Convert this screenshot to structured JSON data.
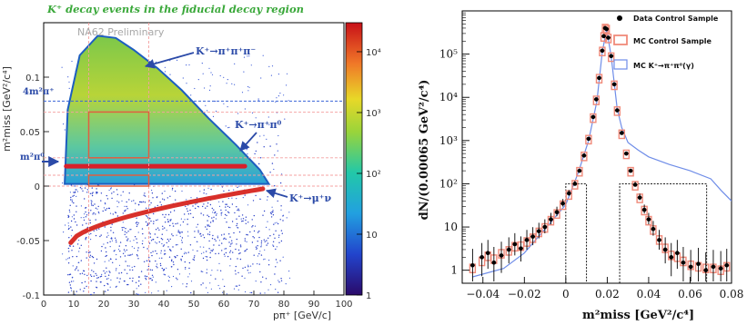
{
  "chart_data": [
    {
      "type": "heatmap",
      "title": "K⁺ decay events in the fiducial decay region",
      "watermark": "NA62 Preliminary",
      "xlabel": "pπ⁺ [GeV/c]",
      "ylabel": "m²miss [GeV²/c⁴]",
      "xlim": [
        0,
        100
      ],
      "ylim": [
        -0.1,
        0.15
      ],
      "xticks": [
        "0",
        "10",
        "20",
        "30",
        "40",
        "50",
        "60",
        "70",
        "80",
        "90",
        "100"
      ],
      "yticks": [
        "-0.1",
        "-0.05",
        "0",
        "0.05",
        "0.1"
      ],
      "colorbar": {
        "scale": "log",
        "range": [
          1,
          30000
        ],
        "ticks": [
          "1",
          "10",
          "10²",
          "10³",
          "10⁴"
        ]
      },
      "bands": [
        {
          "name": "K⁺→π⁺π⁺π⁻",
          "center": 0.0,
          "note": "kinematic triangle peaking near p=20 GeV/c, m²=0.13"
        },
        {
          "name": "K⁺→π⁺π⁰",
          "center": 0.0182
        },
        {
          "name": "K⁺→μ⁺ν",
          "note": "negative curved band from (10,-0.05) to (75,0)"
        }
      ],
      "annotations": [
        {
          "text": "K⁺→π⁺π⁺π⁻",
          "points_to": [
            38,
            0.115
          ]
        },
        {
          "text": "K⁺→π⁺π⁰",
          "points_to": [
            62,
            0.022
          ]
        },
        {
          "text": "K⁺→μ⁺ν",
          "points_to": [
            76,
            -0.002
          ]
        }
      ],
      "axis_markers": [
        {
          "label": "4m²π⁺",
          "y": 0.078
        },
        {
          "label": "m²π⁰",
          "y": 0.0182
        }
      ],
      "regions": [
        {
          "x": [
            15,
            35
          ],
          "y": [
            0.026,
            0.068
          ]
        },
        {
          "x": [
            15,
            35
          ],
          "y": [
            0.0,
            0.01
          ]
        }
      ],
      "dashed_lines_x": [
        15,
        35
      ],
      "dashed_lines_y": [
        0.0,
        0.01,
        0.026,
        0.068
      ]
    },
    {
      "type": "scatter",
      "xlabel": "m²miss [GeV²/c⁴]",
      "ylabel": "dN/(0.00065 GeV²/c⁴)",
      "xlim": [
        -0.05,
        0.08
      ],
      "ylim": [
        0.5,
        1000000
      ],
      "yscale": "log",
      "xticks": [
        "−0.04",
        "−0.02",
        "0",
        "0.02",
        "0.04",
        "0.06",
        "0.08"
      ],
      "yticks": [
        "1",
        "10",
        "10²",
        "10³",
        "10⁴",
        "10⁵"
      ],
      "legend": "top-right",
      "series": [
        {
          "name": "Data Control Sample",
          "style": "black-points",
          "x": [
            -0.045,
            -0.0405,
            -0.0376,
            -0.0347,
            -0.0311,
            -0.0275,
            -0.0246,
            -0.0217,
            -0.0188,
            -0.0159,
            -0.013,
            -0.0101,
            -0.0072,
            -0.0043,
            -0.0014,
            0.0015,
            0.0044,
            0.0066,
            0.0088,
            0.011,
            0.0132,
            0.0147,
            0.0161,
            0.0176,
            0.0183,
            0.019,
            0.0197,
            0.0205,
            0.0219,
            0.0234,
            0.0248,
            0.027,
            0.0292,
            0.0313,
            0.0335,
            0.0357,
            0.0379,
            0.04,
            0.0422,
            0.0451,
            0.048,
            0.0509,
            0.0538,
            0.0567,
            0.0603,
            0.064,
            0.0676,
            0.0712,
            0.0748,
            0.0777
          ],
          "y": [
            1.3,
            2,
            2.5,
            1.5,
            2.2,
            3,
            4,
            3.2,
            5,
            6,
            8,
            10,
            15,
            22,
            35,
            60,
            100,
            200,
            450,
            1100,
            3500,
            9000,
            28000,
            120000,
            260000,
            400000,
            380000,
            240000,
            90000,
            20000,
            5000,
            1500,
            500,
            200,
            95,
            48,
            25,
            15,
            9,
            5,
            3,
            2,
            2.5,
            1.5,
            1.2,
            1.4,
            1,
            1.2,
            1.1,
            1.3
          ]
        },
        {
          "name": "MC Control Sample",
          "style": "salmon-boxes",
          "x": [
            -0.045,
            -0.0405,
            -0.0376,
            -0.0347,
            -0.0311,
            -0.0275,
            -0.0246,
            -0.0217,
            -0.0188,
            -0.0159,
            -0.013,
            -0.0101,
            -0.0072,
            -0.0043,
            -0.0014,
            0.0015,
            0.0044,
            0.0066,
            0.0088,
            0.011,
            0.0132,
            0.0147,
            0.0161,
            0.0176,
            0.0183,
            0.019,
            0.0197,
            0.0205,
            0.0219,
            0.0234,
            0.0248,
            0.027,
            0.0292,
            0.0313,
            0.0335,
            0.0357,
            0.0379,
            0.04,
            0.0422,
            0.0451,
            0.048,
            0.0509,
            0.0538,
            0.0567,
            0.0603,
            0.064,
            0.0676,
            0.0712,
            0.0748,
            0.0777
          ],
          "y": [
            1.1,
            1.6,
            2.1,
            1.8,
            2.4,
            2.8,
            3.5,
            3.6,
            4.5,
            5.5,
            7.5,
            9.5,
            14,
            20,
            32,
            55,
            95,
            190,
            430,
            1050,
            3300,
            8500,
            27000,
            115000,
            250000,
            390000,
            370000,
            230000,
            85000,
            19000,
            4800,
            1400,
            480,
            190,
            90,
            46,
            24,
            14,
            8.5,
            5,
            3.2,
            2.2,
            2,
            1.6,
            1.3,
            1.2,
            1.1,
            1.1,
            1,
            1.2
          ]
        },
        {
          "name": "MC K⁺→π⁺π⁰(γ)",
          "style": "blue-line",
          "x": [
            -0.045,
            -0.03,
            -0.02,
            -0.01,
            0,
            0.006,
            0.011,
            0.015,
            0.0176,
            0.0197,
            0.0219,
            0.0248,
            0.027,
            0.03,
            0.035,
            0.04,
            0.05,
            0.06,
            0.07,
            0.075,
            0.08
          ],
          "y": [
            0.7,
            1.1,
            2.5,
            9,
            33,
            180,
            1000,
            8000,
            110000,
            380000,
            90000,
            5500,
            2000,
            900,
            600,
            420,
            280,
            200,
            130,
            70,
            40
          ]
        }
      ],
      "signal_regions": [
        {
          "x": [
            0.0,
            0.01
          ],
          "y_top": 100
        },
        {
          "x": [
            0.026,
            0.068
          ],
          "y_top": 100
        }
      ]
    }
  ]
}
